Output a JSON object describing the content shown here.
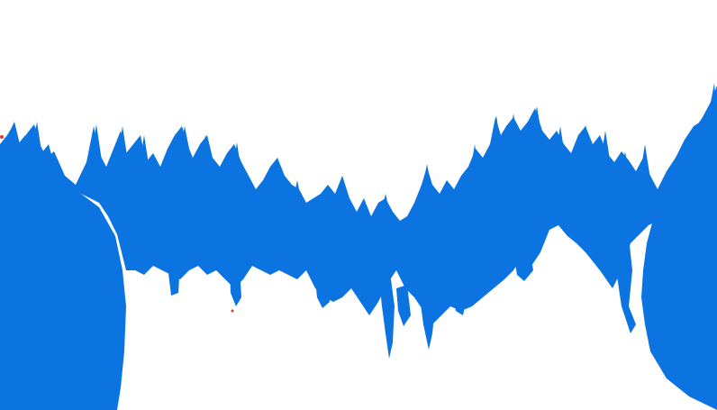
{
  "scene": {
    "background_color": "#ffffff",
    "foliage_color": "#0b74e0",
    "accent_color": "#d8402a",
    "description_icon": "forest-silhouette"
  }
}
